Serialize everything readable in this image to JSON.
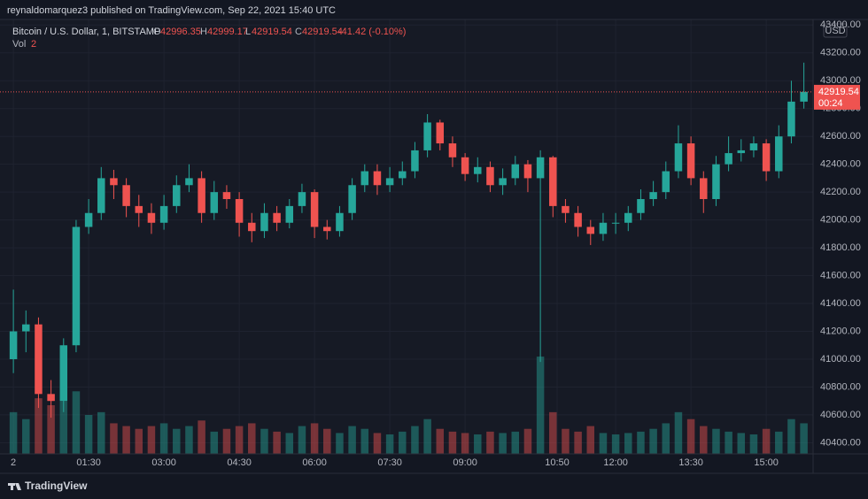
{
  "header": {
    "text": "reynaldomarquez3 published on TradingView.com, Sep 22, 2021 15:40 UTC"
  },
  "legend": {
    "symbol": "Bitcoin / U.S. Dollar, 1, BITSTAMP",
    "o_label": "O",
    "open": 42996.35,
    "h_label": "H",
    "high": 42999.17,
    "l_label": "L",
    "low": 42919.54,
    "c_label": "C",
    "close": 42919.54,
    "change": "-41.42 (-0.10%)",
    "vol_label": "Vol",
    "vol": 2
  },
  "currency": "USD",
  "price_tag": {
    "value": 42919.54,
    "countdown": "00:24"
  },
  "footer": {
    "brand": "TradingView"
  },
  "chart_data": {
    "type": "candlestick",
    "x": [
      0,
      15,
      30,
      45,
      60,
      75,
      90,
      105,
      120,
      135,
      150,
      165,
      180,
      195,
      210,
      225,
      240,
      255,
      270,
      285,
      300,
      315,
      330,
      345,
      360,
      375,
      390,
      405,
      420,
      435,
      450,
      465,
      480,
      495,
      510,
      525,
      540,
      555,
      570,
      585,
      600,
      615,
      630,
      645,
      660,
      675,
      690,
      705,
      720,
      735,
      750,
      765,
      780,
      795,
      810,
      825,
      840,
      855,
      870,
      885,
      900,
      915,
      930,
      945
    ],
    "open": [
      41000,
      41200,
      41250,
      40750,
      40700,
      41100,
      41950,
      42050,
      42300,
      42250,
      42100,
      42050,
      41980,
      42100,
      42250,
      42300,
      42050,
      42200,
      42150,
      41980,
      41920,
      42050,
      41980,
      42100,
      42200,
      41950,
      41920,
      42050,
      42250,
      42350,
      42250,
      42300,
      42350,
      42500,
      42700,
      42550,
      42450,
      42330,
      42380,
      42250,
      42300,
      42400,
      42300,
      42450,
      42100,
      42050,
      41950,
      41900,
      41980,
      41980,
      42050,
      42150,
      42200,
      42350,
      42550,
      42300,
      42150,
      42400,
      42480,
      42500,
      42550,
      42350,
      42600,
      42850
    ],
    "high": [
      41500,
      41350,
      41300,
      40850,
      41150,
      42000,
      42150,
      42380,
      42360,
      42300,
      42180,
      42120,
      42180,
      42320,
      42400,
      42350,
      42280,
      42250,
      42200,
      42050,
      42120,
      42100,
      42150,
      42260,
      42220,
      42000,
      42100,
      42300,
      42400,
      42400,
      42380,
      42420,
      42560,
      42760,
      42720,
      42600,
      42480,
      42450,
      42420,
      42370,
      42460,
      42430,
      42500,
      42460,
      42150,
      42100,
      42000,
      42050,
      42050,
      42100,
      42220,
      42280,
      42420,
      42680,
      42600,
      42350,
      42460,
      42600,
      42580,
      42600,
      42580,
      42680,
      43000,
      43130
    ],
    "low": [
      40900,
      41050,
      40650,
      40580,
      40620,
      41050,
      41900,
      42000,
      42150,
      42020,
      41950,
      41900,
      41930,
      42050,
      42200,
      41980,
      42000,
      42080,
      41880,
      41840,
      41870,
      41920,
      41940,
      42050,
      41870,
      41860,
      41880,
      42000,
      42200,
      42180,
      42200,
      42250,
      42300,
      42450,
      42500,
      42380,
      42280,
      42270,
      42200,
      42180,
      42250,
      42200,
      40980,
      42020,
      41980,
      41880,
      41820,
      41850,
      41900,
      41920,
      42000,
      42100,
      42150,
      42300,
      42250,
      42050,
      42100,
      42350,
      42420,
      42450,
      42280,
      42300,
      42550,
      42800
    ],
    "close": [
      41200,
      41250,
      40750,
      40700,
      41100,
      41950,
      42050,
      42300,
      42250,
      42100,
      42050,
      41980,
      42100,
      42250,
      42300,
      42050,
      42200,
      42150,
      41980,
      41920,
      42050,
      41980,
      42100,
      42200,
      41950,
      41920,
      42050,
      42250,
      42350,
      42250,
      42300,
      42350,
      42500,
      42700,
      42550,
      42450,
      42330,
      42380,
      42250,
      42300,
      42400,
      42300,
      42450,
      42100,
      42050,
      41950,
      41900,
      41980,
      41980,
      42050,
      42150,
      42200,
      42350,
      42550,
      42300,
      42150,
      42400,
      42480,
      42500,
      42550,
      42350,
      42600,
      42850,
      42920
    ],
    "volume": [
      30,
      25,
      40,
      35,
      38,
      45,
      28,
      30,
      22,
      20,
      18,
      20,
      22,
      18,
      20,
      24,
      16,
      18,
      20,
      22,
      18,
      16,
      15,
      20,
      22,
      18,
      15,
      20,
      18,
      15,
      14,
      16,
      20,
      25,
      18,
      16,
      15,
      14,
      16,
      15,
      16,
      18,
      70,
      30,
      18,
      16,
      20,
      15,
      14,
      15,
      16,
      18,
      22,
      30,
      25,
      20,
      18,
      16,
      15,
      14,
      18,
      16,
      25,
      22
    ],
    "up_color": "#26a69a",
    "down_color": "#ef5350",
    "xlim": [
      -16,
      956
    ],
    "xticks": [
      {
        "value": 0,
        "label": "2"
      },
      {
        "value": 90,
        "label": "01:30"
      },
      {
        "value": 180,
        "label": "03:00"
      },
      {
        "value": 270,
        "label": "04:30"
      },
      {
        "value": 360,
        "label": "06:00"
      },
      {
        "value": 450,
        "label": "07:30"
      },
      {
        "value": 540,
        "label": "09:00"
      },
      {
        "value": 650,
        "label": "10:50"
      },
      {
        "value": 720,
        "label": "12:00"
      },
      {
        "value": 810,
        "label": "13:30"
      },
      {
        "value": 900,
        "label": "15:00"
      }
    ],
    "ylim": [
      40320,
      43440
    ],
    "yticks": [
      {
        "value": 40400,
        "label": "40400.00"
      },
      {
        "value": 40600,
        "label": "40600.00"
      },
      {
        "value": 40800,
        "label": "40800.00"
      },
      {
        "value": 41000,
        "label": "41000.00"
      },
      {
        "value": 41200,
        "label": "41200.00"
      },
      {
        "value": 41400,
        "label": "41400.00"
      },
      {
        "value": 41600,
        "label": "41600.00"
      },
      {
        "value": 41800,
        "label": "41800.00"
      },
      {
        "value": 42000,
        "label": "42000.00"
      },
      {
        "value": 42200,
        "label": "42200.00"
      },
      {
        "value": 42400,
        "label": "42400.00"
      },
      {
        "value": 42600,
        "label": "42600.00"
      },
      {
        "value": 42800,
        "label": "42800.00"
      },
      {
        "value": 43000,
        "label": "43000.00"
      },
      {
        "value": 43200,
        "label": "43200.00"
      },
      {
        "value": 43400,
        "label": "43400.00"
      }
    ],
    "grid": true
  }
}
